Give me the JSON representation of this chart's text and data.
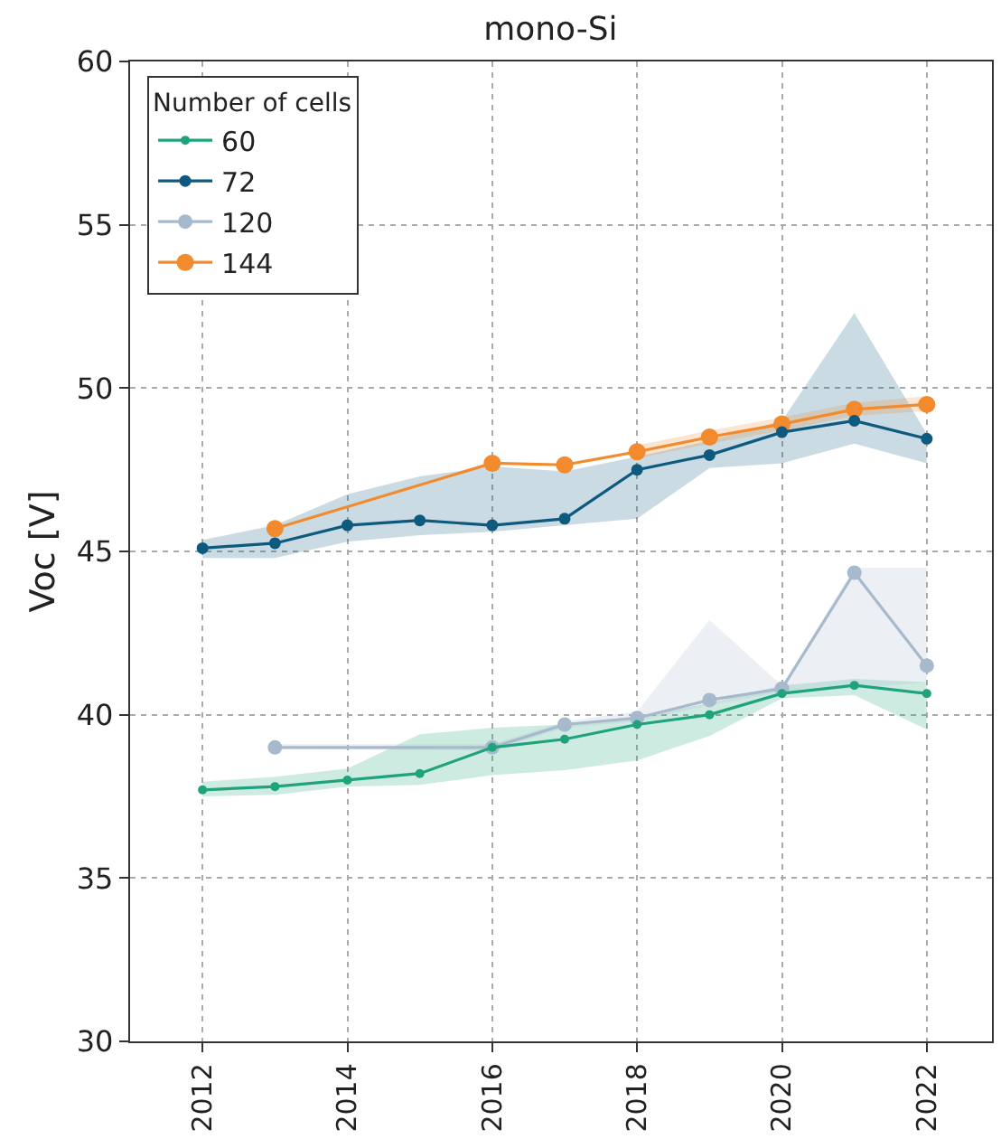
{
  "chart_data": {
    "type": "line",
    "title": "mono-Si",
    "ylabel": "Voc [V]",
    "legend_title": "Number of cells",
    "x": [
      2012,
      2013,
      2014,
      2015,
      2016,
      2017,
      2018,
      2019,
      2020,
      2021,
      2022
    ],
    "series": [
      {
        "name": "60",
        "color": "#1fa37c",
        "values": [
          37.7,
          37.8,
          38.0,
          38.2,
          39.0,
          39.25,
          39.7,
          40.0,
          40.65,
          40.9,
          40.65
        ],
        "lower": [
          37.5,
          37.55,
          37.8,
          37.85,
          38.15,
          38.3,
          38.6,
          39.35,
          40.5,
          40.6,
          39.55
        ],
        "upper": [
          37.95,
          38.1,
          38.35,
          39.4,
          39.6,
          39.7,
          39.95,
          40.35,
          40.9,
          41.1,
          41.0
        ]
      },
      {
        "name": "72",
        "color": "#0e5a7f",
        "values": [
          45.1,
          45.25,
          45.8,
          45.95,
          45.8,
          46.0,
          47.5,
          47.95,
          48.65,
          49.0,
          48.45
        ],
        "lower": [
          44.8,
          44.8,
          45.3,
          45.5,
          45.6,
          45.8,
          46.0,
          47.55,
          47.7,
          48.3,
          47.7
        ],
        "upper": [
          45.35,
          45.8,
          46.75,
          47.3,
          47.6,
          47.45,
          47.9,
          48.4,
          49.0,
          52.3,
          48.6
        ]
      },
      {
        "name": "120",
        "color": "#a7b9cc",
        "values": [
          null,
          39.0,
          null,
          null,
          39.0,
          39.7,
          39.9,
          40.45,
          40.8,
          44.35,
          41.5
        ],
        "lower": [
          null,
          38.95,
          null,
          null,
          38.9,
          39.6,
          39.8,
          40.3,
          40.7,
          40.8,
          41.0
        ],
        "upper": [
          null,
          39.1,
          null,
          null,
          39.1,
          39.8,
          40.1,
          42.9,
          40.9,
          44.5,
          44.5
        ]
      },
      {
        "name": "144",
        "color": "#f28a2e",
        "values": [
          null,
          45.7,
          null,
          null,
          47.7,
          47.65,
          48.05,
          48.5,
          48.9,
          49.35,
          49.5
        ],
        "lower": [
          null,
          null,
          null,
          null,
          null,
          null,
          47.85,
          48.3,
          48.7,
          49.15,
          49.3
        ],
        "upper": [
          null,
          null,
          null,
          null,
          null,
          null,
          48.25,
          48.7,
          49.1,
          49.55,
          49.75
        ]
      }
    ],
    "xlim": [
      2011,
      2022.9
    ],
    "xticks": [
      2012,
      2014,
      2016,
      2018,
      2020,
      2022
    ],
    "ylim": [
      30,
      60
    ],
    "yticks": [
      30,
      35,
      40,
      45,
      50,
      55,
      60
    ],
    "grid": true,
    "legend": "top left",
    "marker": "circle",
    "line_style": "solid"
  }
}
